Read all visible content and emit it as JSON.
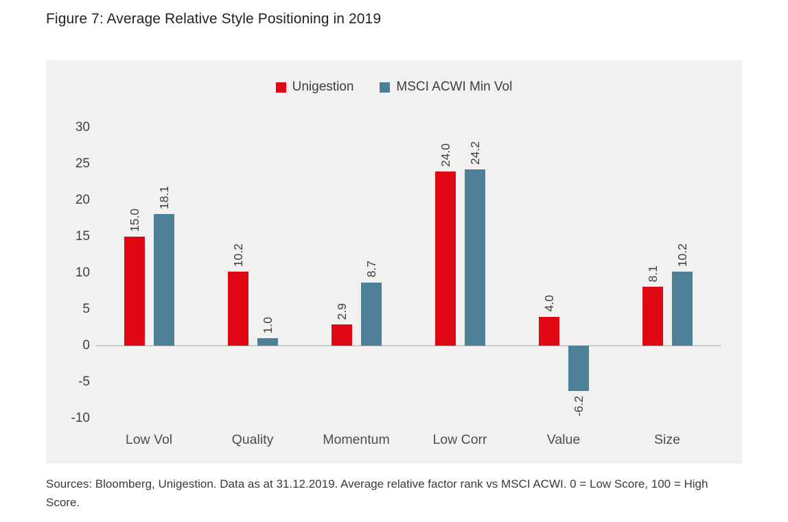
{
  "title": "Figure 7: Average Relative Style Positioning in 2019",
  "footer": "Sources: Bloomberg, Unigestion. Data as at 31.12.2019. Average relative factor rank vs MSCI ACWI. 0 = Low Score, 100 = High Score.",
  "colors": {
    "unigestion_red": "#e00715",
    "msci_blue": "#4e7f99",
    "panel_background": "#f1f1f0",
    "axis_line": "#c9c9c9"
  },
  "chart_data": {
    "type": "bar",
    "title": "Figure 7: Average Relative Style Positioning in 2019",
    "categories": [
      "Low Vol",
      "Quality",
      "Momentum",
      "Low Corr",
      "Value",
      "Size"
    ],
    "series": [
      {
        "name": "Unigestion",
        "color": "#e00715",
        "values": [
          15.0,
          10.2,
          2.9,
          24.0,
          4.0,
          8.1
        ]
      },
      {
        "name": "MSCI ACWI Min Vol",
        "color": "#4e7f99",
        "values": [
          18.1,
          1.0,
          8.7,
          24.2,
          -6.2,
          10.2
        ]
      }
    ],
    "yticks": [
      30,
      25,
      20,
      15,
      10,
      5,
      0,
      -5,
      -10
    ],
    "ylim": [
      -10,
      30
    ],
    "xlabel": "",
    "ylabel": "",
    "grid": false,
    "legend_position": "top",
    "data_labels": true,
    "data_labels_rotated": true
  }
}
